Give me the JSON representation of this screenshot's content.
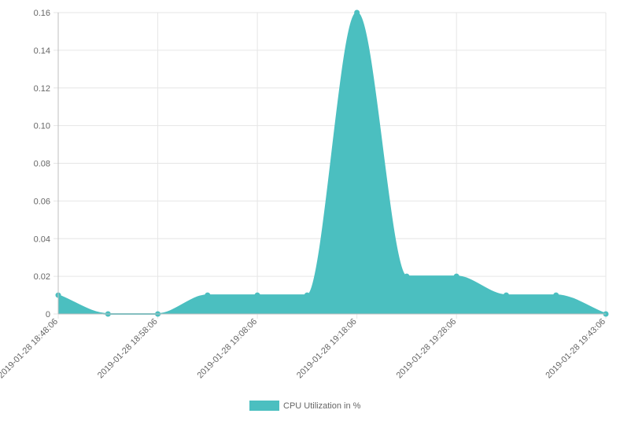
{
  "chart_data": {
    "type": "area",
    "x": [
      "2019-01-28 18:48:06",
      "2019-01-28 18:53:06",
      "2019-01-28 18:58:06",
      "2019-01-28 19:03:06",
      "2019-01-28 19:08:06",
      "2019-01-28 19:13:06",
      "2019-01-28 19:18:06",
      "2019-01-28 19:23:06",
      "2019-01-28 19:28:06",
      "2019-01-28 19:33:06",
      "2019-01-28 19:38:06",
      "2019-01-28 19:43:06"
    ],
    "x_tick_labels": [
      "2019-01-28 18:48:06",
      "2019-01-28 18:58:06",
      "2019-01-28 19:08:06",
      "2019-01-28 19:18:06",
      "2019-01-28 19:28:06",
      "2019-01-28 19:43:06"
    ],
    "series": [
      {
        "name": "CPU Utilization in %",
        "values": [
          0.01,
          0,
          0,
          0.01,
          0.01,
          0.01,
          0.16,
          0.02,
          0.02,
          0.01,
          0.01,
          0
        ]
      }
    ],
    "y_ticks": [
      "0",
      "0.02",
      "0.04",
      "0.06",
      "0.08",
      "0.10",
      "0.12",
      "0.14",
      "0.16"
    ],
    "ylim": [
      0,
      0.16
    ],
    "grid": true,
    "legend_position": "bottom",
    "colors": {
      "series_fill": "#4bbfc0",
      "series_line": "#4bbfc0",
      "grid": "#e6e6e6"
    }
  }
}
